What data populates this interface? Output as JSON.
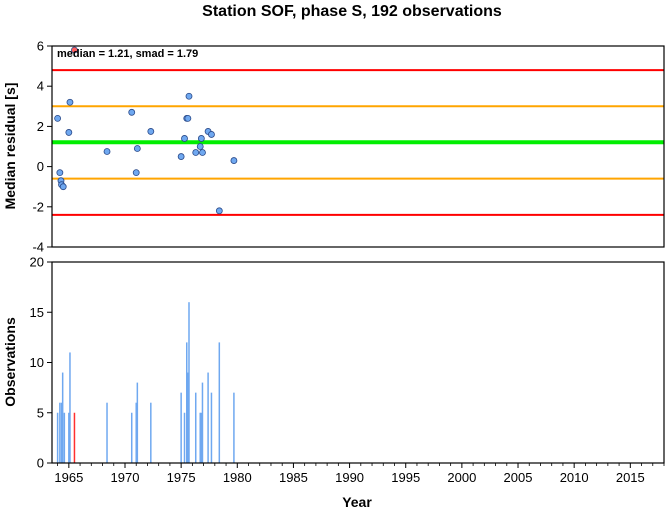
{
  "title": "Station SOF, phase S, 192 observations",
  "chart_data": [
    {
      "type": "scatter",
      "ylabel": "Median residual [s]",
      "xlim": [
        1963.5,
        2018
      ],
      "ylim": [
        -4,
        6
      ],
      "yticks": [
        -4,
        -2,
        0,
        2,
        4,
        6
      ],
      "annotation": "median = 1.21, smad = 1.79",
      "reference_lines": [
        {
          "value": 4.8,
          "color": "#ff0000"
        },
        {
          "value": 3.0,
          "color": "#ffa500"
        },
        {
          "value": 1.21,
          "color": "#00ee00"
        },
        {
          "value": -0.6,
          "color": "#ffa500"
        },
        {
          "value": -2.4,
          "color": "#ff0000"
        }
      ],
      "points": [
        {
          "x": 1964.0,
          "y": 2.4,
          "color": "#6fa8f0"
        },
        {
          "x": 1964.2,
          "y": -0.3,
          "color": "#6fa8f0"
        },
        {
          "x": 1964.3,
          "y": -0.7,
          "color": "#6fa8f0"
        },
        {
          "x": 1964.35,
          "y": -0.9,
          "color": "#6fa8f0"
        },
        {
          "x": 1964.5,
          "y": -1.0,
          "color": "#6fa8f0"
        },
        {
          "x": 1965.0,
          "y": 1.7,
          "color": "#6fa8f0"
        },
        {
          "x": 1965.1,
          "y": 3.2,
          "color": "#6fa8f0"
        },
        {
          "x": 1965.5,
          "y": 5.8,
          "color": "#ff6060"
        },
        {
          "x": 1968.4,
          "y": 0.75,
          "color": "#6fa8f0"
        },
        {
          "x": 1970.6,
          "y": 2.7,
          "color": "#6fa8f0"
        },
        {
          "x": 1971.0,
          "y": -0.3,
          "color": "#6fa8f0"
        },
        {
          "x": 1971.1,
          "y": 0.9,
          "color": "#6fa8f0"
        },
        {
          "x": 1972.3,
          "y": 1.75,
          "color": "#6fa8f0"
        },
        {
          "x": 1975.0,
          "y": 0.5,
          "color": "#6fa8f0"
        },
        {
          "x": 1975.3,
          "y": 1.4,
          "color": "#6fa8f0"
        },
        {
          "x": 1975.5,
          "y": 2.4,
          "color": "#6fa8f0"
        },
        {
          "x": 1975.6,
          "y": 2.4,
          "color": "#6fa8f0"
        },
        {
          "x": 1975.7,
          "y": 3.5,
          "color": "#6fa8f0"
        },
        {
          "x": 1976.3,
          "y": 0.7,
          "color": "#6fa8f0"
        },
        {
          "x": 1976.7,
          "y": 1.0,
          "color": "#6fa8f0"
        },
        {
          "x": 1976.8,
          "y": 1.4,
          "color": "#6fa8f0"
        },
        {
          "x": 1976.9,
          "y": 0.7,
          "color": "#6fa8f0"
        },
        {
          "x": 1977.4,
          "y": 1.75,
          "color": "#6fa8f0"
        },
        {
          "x": 1977.7,
          "y": 1.6,
          "color": "#6fa8f0"
        },
        {
          "x": 1978.4,
          "y": -2.2,
          "color": "#6fa8f0"
        },
        {
          "x": 1979.7,
          "y": 0.3,
          "color": "#6fa8f0"
        }
      ]
    },
    {
      "type": "bar",
      "xlabel": "Year",
      "ylabel": "Observations",
      "xlim": [
        1963.5,
        2018
      ],
      "ylim": [
        0,
        20
      ],
      "yticks": [
        0,
        5,
        10,
        15,
        20
      ],
      "xticks": [
        1965,
        1970,
        1975,
        1980,
        1985,
        1990,
        1995,
        2000,
        2005,
        2010,
        2015
      ],
      "bars": [
        {
          "x": 1964.0,
          "y": 5,
          "color": "#6fa8f0"
        },
        {
          "x": 1964.2,
          "y": 6,
          "color": "#6fa8f0"
        },
        {
          "x": 1964.35,
          "y": 6,
          "color": "#6fa8f0"
        },
        {
          "x": 1964.45,
          "y": 9,
          "color": "#6fa8f0"
        },
        {
          "x": 1964.6,
          "y": 5,
          "color": "#6fa8f0"
        },
        {
          "x": 1965.0,
          "y": 5,
          "color": "#6fa8f0"
        },
        {
          "x": 1965.1,
          "y": 11,
          "color": "#6fa8f0"
        },
        {
          "x": 1965.5,
          "y": 5,
          "color": "#ff3030"
        },
        {
          "x": 1968.4,
          "y": 6,
          "color": "#6fa8f0"
        },
        {
          "x": 1970.6,
          "y": 5,
          "color": "#6fa8f0"
        },
        {
          "x": 1971.0,
          "y": 6,
          "color": "#6fa8f0"
        },
        {
          "x": 1971.1,
          "y": 8,
          "color": "#6fa8f0"
        },
        {
          "x": 1972.3,
          "y": 6,
          "color": "#6fa8f0"
        },
        {
          "x": 1975.0,
          "y": 7,
          "color": "#6fa8f0"
        },
        {
          "x": 1975.3,
          "y": 5,
          "color": "#6fa8f0"
        },
        {
          "x": 1975.5,
          "y": 12,
          "color": "#6fa8f0"
        },
        {
          "x": 1975.6,
          "y": 9,
          "color": "#6fa8f0"
        },
        {
          "x": 1975.7,
          "y": 16,
          "color": "#6fa8f0"
        },
        {
          "x": 1976.3,
          "y": 7,
          "color": "#6fa8f0"
        },
        {
          "x": 1976.7,
          "y": 5,
          "color": "#6fa8f0"
        },
        {
          "x": 1976.8,
          "y": 5,
          "color": "#6fa8f0"
        },
        {
          "x": 1976.9,
          "y": 8,
          "color": "#6fa8f0"
        },
        {
          "x": 1977.4,
          "y": 9,
          "color": "#6fa8f0"
        },
        {
          "x": 1977.7,
          "y": 7,
          "color": "#6fa8f0"
        },
        {
          "x": 1978.4,
          "y": 12,
          "color": "#6fa8f0"
        },
        {
          "x": 1979.7,
          "y": 7,
          "color": "#6fa8f0"
        }
      ]
    }
  ]
}
